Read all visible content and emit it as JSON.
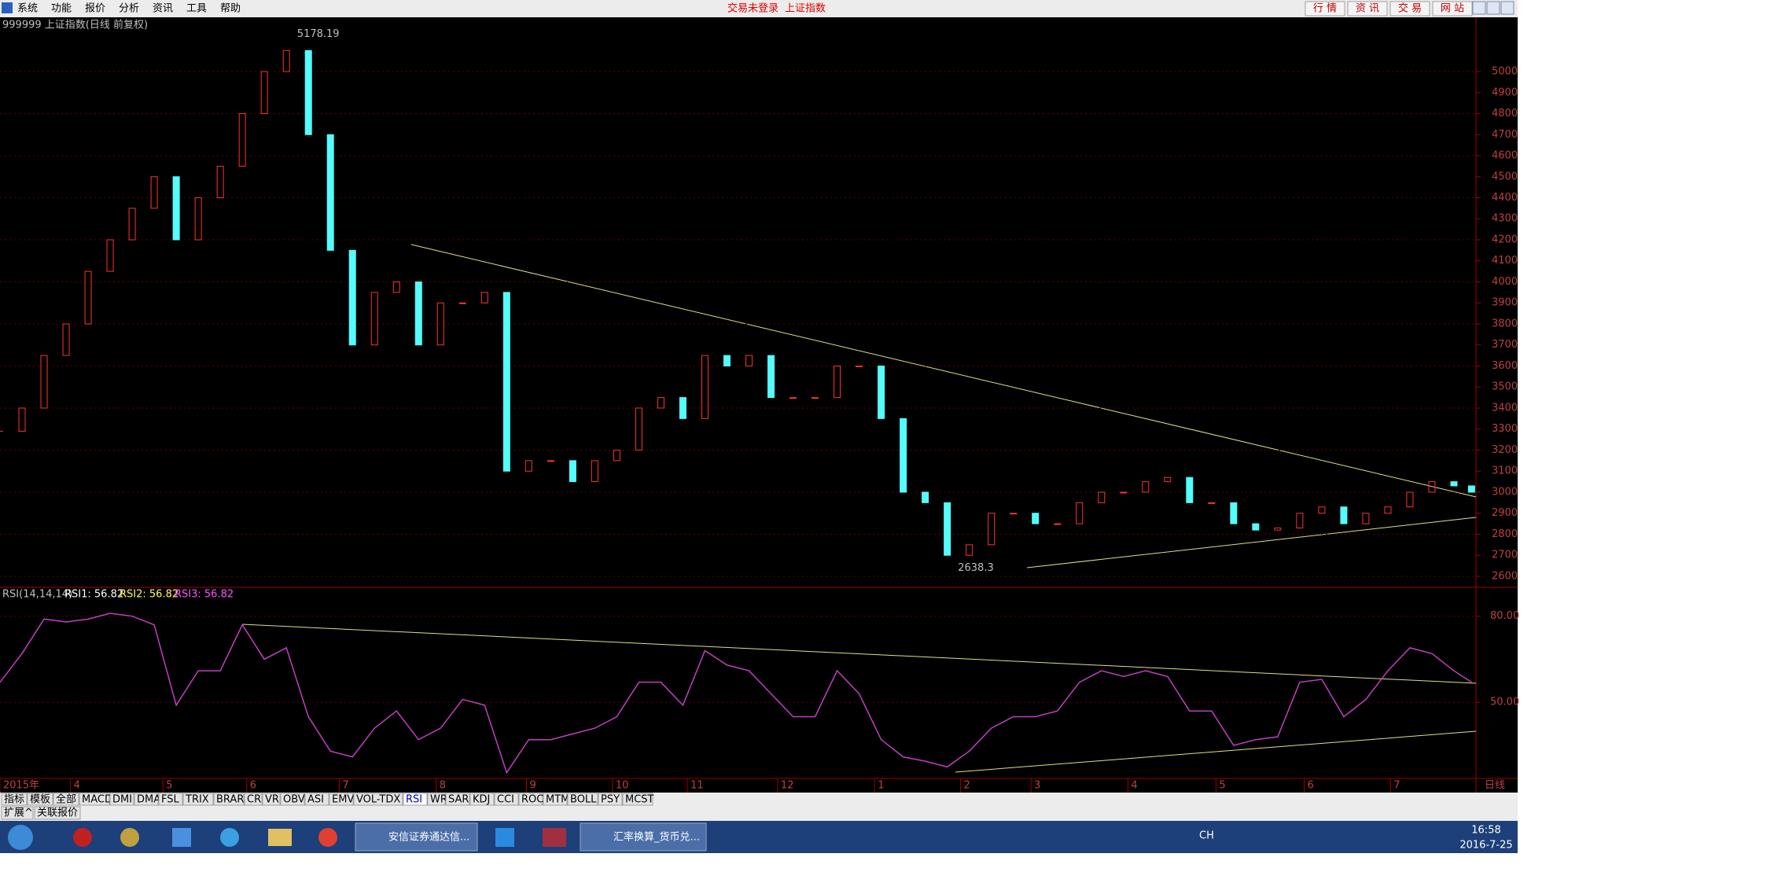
{
  "menu": [
    "系统",
    "功能",
    "报价",
    "分析",
    "资讯",
    "工具",
    "帮助"
  ],
  "status": [
    "交易未登录",
    "上证指数"
  ],
  "buttons": [
    "行 情",
    "资 讯",
    "交 易",
    "网 站"
  ],
  "chart_data": [
    {
      "type": "candlestick",
      "title": "999999 上证指数(日线 前复权)",
      "period": "日线",
      "x": [
        0,
        5,
        10,
        15,
        20,
        25,
        30,
        35,
        40,
        45,
        50,
        55,
        60,
        65,
        70,
        75,
        80,
        85,
        90,
        95,
        100,
        105,
        110,
        115,
        120,
        125,
        130,
        135,
        140,
        145,
        150,
        155,
        160,
        165,
        170,
        175,
        180,
        185,
        190,
        195,
        200,
        205,
        210,
        215,
        220,
        225,
        230,
        235,
        240,
        245,
        250,
        255,
        260,
        265,
        270,
        275,
        280,
        285,
        290,
        295,
        300,
        305,
        310,
        315,
        320,
        325,
        330,
        334
      ],
      "values": [
        3290,
        3400,
        3650,
        3800,
        4050,
        4200,
        4350,
        4500,
        4200,
        4400,
        4550,
        4800,
        5000,
        5100,
        4700,
        4150,
        3700,
        3950,
        4000,
        3700,
        3900,
        3900,
        3950,
        3100,
        3150,
        3150,
        3050,
        3150,
        3200,
        3400,
        3450,
        3350,
        3650,
        3600,
        3650,
        3450,
        3450,
        3450,
        3600,
        3600,
        3350,
        3000,
        2950,
        2700,
        2750,
        2900,
        2900,
        2850,
        2850,
        2950,
        3000,
        3000,
        3050,
        3070,
        2950,
        2950,
        2850,
        2820,
        2830,
        2900,
        2930,
        2850,
        2900,
        2930,
        3000,
        3050,
        3030,
        3000
      ],
      "up_color": "#ff3232",
      "down_color": "#54fcfc",
      "xlim": [
        0,
        335
      ],
      "xticks": [
        {
          "value": 0,
          "label": "2015年"
        },
        {
          "value": 16,
          "label": "4"
        },
        {
          "value": 37,
          "label": "5"
        },
        {
          "value": 56,
          "label": "6"
        },
        {
          "value": 77,
          "label": "7"
        },
        {
          "value": 99,
          "label": "8"
        },
        {
          "value": 119.5,
          "label": "9"
        },
        {
          "value": 139,
          "label": "10"
        },
        {
          "value": 156,
          "label": "11"
        },
        {
          "value": 176.5,
          "label": "12"
        },
        {
          "value": 198.5,
          "label": "1"
        },
        {
          "value": 218,
          "label": "2"
        },
        {
          "value": 234,
          "label": "3"
        },
        {
          "value": 256,
          "label": "4"
        },
        {
          "value": 276,
          "label": "5"
        },
        {
          "value": 296,
          "label": "6"
        },
        {
          "value": 315.6,
          "label": "7"
        }
      ],
      "ylim": [
        2555,
        5258
      ],
      "yticks": [
        2600,
        2700,
        2800,
        2900,
        3000,
        3100,
        3200,
        3300,
        3400,
        3500,
        3600,
        3700,
        3800,
        3900,
        4000,
        4100,
        4200,
        4300,
        4400,
        4500,
        4600,
        4700,
        4800,
        4900,
        5000
      ],
      "grid": true,
      "annotations": [
        {
          "x": 66,
          "value": 5178.19
        },
        {
          "x": 216,
          "value": 2638.3
        }
      ]
    },
    {
      "type": "line",
      "title": "RSI(14,14,14)",
      "legend": [
        {
          "text": "RSI1: 56.82",
          "color": "#ffffff"
        },
        {
          "text": "RSI2: 56.82",
          "color": "#ffff54"
        },
        {
          "text": "RSI3: 56.82",
          "color": "#ff54ff"
        }
      ],
      "x": [
        0,
        5,
        10,
        15,
        20,
        25,
        30,
        35,
        40,
        45,
        50,
        55,
        60,
        65,
        70,
        75,
        80,
        85,
        90,
        95,
        100,
        105,
        110,
        115,
        120,
        125,
        130,
        135,
        140,
        145,
        150,
        155,
        160,
        165,
        170,
        175,
        180,
        185,
        190,
        195,
        200,
        205,
        210,
        215,
        220,
        225,
        230,
        235,
        240,
        245,
        250,
        255,
        260,
        265,
        270,
        275,
        280,
        285,
        290,
        295,
        300,
        305,
        310,
        315,
        320,
        325,
        330,
        334
      ],
      "series": [
        {
          "color": "#c040c0",
          "values": [
            57,
            67,
            79,
            78,
            79,
            81,
            80,
            77,
            49,
            61,
            61,
            77,
            65,
            69,
            45,
            33,
            31,
            41,
            47,
            37,
            41,
            51,
            49,
            25.5,
            37,
            37,
            39,
            41,
            45,
            57,
            57,
            49,
            68,
            63,
            61,
            53,
            45,
            45,
            61,
            53,
            37,
            31,
            29.5,
            27.5,
            33,
            41,
            45,
            45,
            47,
            57,
            61,
            59,
            61,
            59,
            47,
            47,
            35,
            37,
            38,
            57,
            58,
            45,
            51,
            61,
            69,
            67,
            61,
            57
          ]
        }
      ],
      "xlim": [
        0,
        335
      ],
      "ylim": [
        23.5,
        89.5
      ],
      "yticks": [
        {
          "value": 80,
          "label": "80.00"
        },
        {
          "value": 50,
          "label": "50.00"
        }
      ]
    }
  ],
  "tabs": [
    "指标",
    "模板",
    "全部",
    "MACD",
    "DMI",
    "DMA",
    "FSL",
    "TRIX",
    "BRAR",
    "CR",
    "VR",
    "OBV",
    "ASI",
    "EMV",
    "VOL-TDX",
    "RSI",
    "WR",
    "SAR",
    "KDJ",
    "CCI",
    "ROC",
    "MTM",
    "BOLL",
    "PSY",
    "MCST"
  ],
  "bottom_tabs": [
    "扩展^",
    "关联报价"
  ],
  "taskbar": {
    "windows": [
      "安信证券通达信...",
      "汇率换算_货币兑..."
    ],
    "lang": "CH",
    "time": "16:58",
    "date": "2016-7-25"
  }
}
